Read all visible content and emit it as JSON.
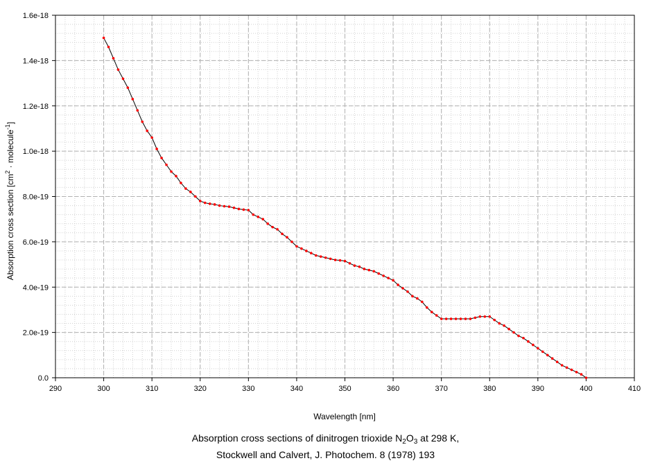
{
  "chart_data": {
    "type": "line",
    "xlabel": "Wavelength [nm]",
    "ylabel": {
      "prefix": "Absorption cross section [cm",
      "sup1": "2",
      "mid": " · molecule",
      "sup2": "-1",
      "suffix": "]"
    },
    "xlim": [
      290,
      410
    ],
    "ylim": [
      0,
      1.6e-18
    ],
    "xticks": [
      290,
      300,
      310,
      320,
      330,
      340,
      350,
      360,
      370,
      380,
      390,
      400,
      410
    ],
    "xtick_labels": [
      "290",
      "300",
      "310",
      "320",
      "330",
      "340",
      "350",
      "360",
      "370",
      "380",
      "390",
      "400",
      "410"
    ],
    "yticks": [
      0,
      2e-19,
      4e-19,
      6e-19,
      8e-19,
      1e-18,
      1.2e-18,
      1.4e-18,
      1.6e-18
    ],
    "ytick_labels": [
      "0.0",
      "2.0e-19",
      "4.0e-19",
      "6.0e-19",
      "8.0e-19",
      "1.0e-18",
      "1.2e-18",
      "1.4e-18",
      "1.6e-18"
    ],
    "grid": true,
    "series": [
      {
        "line_color": "#000000",
        "marker_color": "#ff0000",
        "x": [
          300,
          301,
          302,
          303,
          304,
          305,
          306,
          307,
          308,
          309,
          310,
          311,
          312,
          313,
          314,
          315,
          316,
          317,
          318,
          319,
          320,
          321,
          322,
          323,
          324,
          325,
          326,
          327,
          328,
          329,
          330,
          331,
          332,
          333,
          334,
          335,
          336,
          337,
          338,
          339,
          340,
          341,
          342,
          343,
          344,
          345,
          346,
          347,
          348,
          349,
          350,
          351,
          352,
          353,
          354,
          355,
          356,
          357,
          358,
          359,
          360,
          361,
          362,
          363,
          364,
          365,
          366,
          367,
          368,
          369,
          370,
          371,
          372,
          373,
          374,
          375,
          376,
          377,
          378,
          379,
          380,
          381,
          382,
          383,
          384,
          385,
          386,
          387,
          388,
          389,
          390,
          391,
          392,
          393,
          394,
          395,
          396,
          397,
          398,
          399,
          400
        ],
        "y": [
          1.5e-18,
          1.46e-18,
          1.41e-18,
          1.36e-18,
          1.32e-18,
          1.28e-18,
          1.23e-18,
          1.18e-18,
          1.13e-18,
          1.09e-18,
          1.06e-18,
          1.01e-18,
          9.7e-19,
          9.4e-19,
          9.1e-19,
          8.9e-19,
          8.6e-19,
          8.35e-19,
          8.2e-19,
          8e-19,
          7.8e-19,
          7.72e-19,
          7.68e-19,
          7.65e-19,
          7.6e-19,
          7.57e-19,
          7.55e-19,
          7.5e-19,
          7.45e-19,
          7.42e-19,
          7.4e-19,
          7.2e-19,
          7.1e-19,
          7e-19,
          6.8e-19,
          6.65e-19,
          6.55e-19,
          6.35e-19,
          6.2e-19,
          6e-19,
          5.8e-19,
          5.7e-19,
          5.6e-19,
          5.5e-19,
          5.4e-19,
          5.35e-19,
          5.3e-19,
          5.25e-19,
          5.2e-19,
          5.18e-19,
          5.15e-19,
          5.05e-19,
          4.95e-19,
          4.9e-19,
          4.8e-19,
          4.75e-19,
          4.7e-19,
          4.6e-19,
          4.5e-19,
          4.4e-19,
          4.3e-19,
          4.1e-19,
          3.95e-19,
          3.8e-19,
          3.6e-19,
          3.5e-19,
          3.35e-19,
          3.1e-19,
          2.9e-19,
          2.75e-19,
          2.6e-19,
          2.6e-19,
          2.6e-19,
          2.6e-19,
          2.6e-19,
          2.6e-19,
          2.6e-19,
          2.65e-19,
          2.7e-19,
          2.7e-19,
          2.7e-19,
          2.55e-19,
          2.4e-19,
          2.3e-19,
          2.15e-19,
          2e-19,
          1.85e-19,
          1.75e-19,
          1.6e-19,
          1.45e-19,
          1.3e-19,
          1.15e-19,
          1e-19,
          8.5e-20,
          7e-20,
          5.5e-20,
          4.5e-20,
          3.5e-20,
          2.5e-20,
          1.5e-20,
          0
        ]
      }
    ]
  },
  "caption": {
    "line1_prefix": "Absorption cross sections of dinitrogen trioxide N",
    "line1_sub1": "2",
    "line1_mid": "O",
    "line1_sub2": "3",
    "line1_suffix": " at 298 K,",
    "line2": "Stockwell and Calvert, J. Photochem. 8 (1978) 193"
  }
}
